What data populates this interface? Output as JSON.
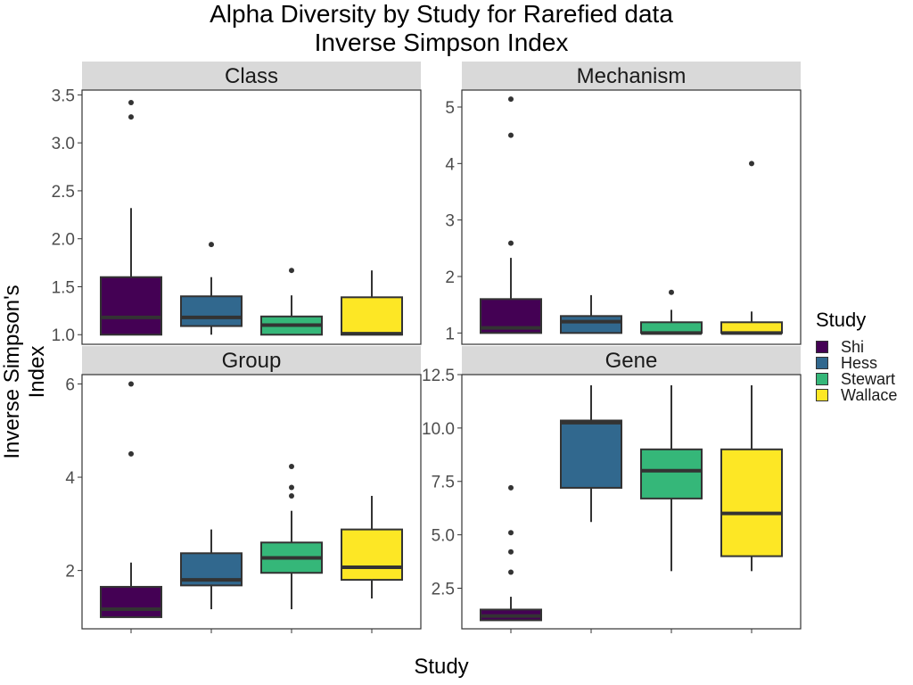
{
  "chart_data": {
    "type": "boxplot",
    "title": "Alpha Diversity by Study for Rarefied data",
    "subtitle": "Inverse Simpson Index",
    "xlabel": "Study",
    "ylabel": "Inverse Simpson's Index",
    "legend": {
      "title": "Study",
      "placement": "right",
      "entries": [
        {
          "name": "Shi",
          "color": "#440154"
        },
        {
          "name": "Hess",
          "color": "#31688E"
        },
        {
          "name": "Stewart",
          "color": "#35B779"
        },
        {
          "name": "Wallace",
          "color": "#FDE725"
        }
      ]
    },
    "categories": [
      "Shi",
      "Hess",
      "Stewart",
      "Wallace"
    ],
    "grid": false,
    "panels": [
      {
        "name": "Class",
        "ylim": [
          0.9,
          3.55
        ],
        "yticks": [
          1.0,
          1.5,
          2.0,
          2.5,
          3.0,
          3.5
        ],
        "ytick_labels": [
          "1.0",
          "1.5",
          "2.0",
          "2.5",
          "3.0",
          "3.5"
        ],
        "boxes": [
          {
            "study": "Shi",
            "whisker_low": 1.0,
            "q1": 1.0,
            "median": 1.18,
            "q3": 1.6,
            "whisker_high": 2.32,
            "outliers": [
              3.27,
              3.42
            ]
          },
          {
            "study": "Hess",
            "whisker_low": 1.0,
            "q1": 1.09,
            "median": 1.18,
            "q3": 1.4,
            "whisker_high": 1.6,
            "outliers": [
              1.94
            ]
          },
          {
            "study": "Stewart",
            "whisker_low": 1.0,
            "q1": 1.0,
            "median": 1.1,
            "q3": 1.19,
            "whisker_high": 1.41,
            "outliers": [
              1.67
            ]
          },
          {
            "study": "Wallace",
            "whisker_low": 1.0,
            "q1": 1.0,
            "median": 1.01,
            "q3": 1.39,
            "whisker_high": 1.67,
            "outliers": []
          }
        ]
      },
      {
        "name": "Mechanism",
        "ylim": [
          0.8,
          5.3
        ],
        "yticks": [
          1,
          2,
          3,
          4,
          5
        ],
        "ytick_labels": [
          "1",
          "2",
          "3",
          "4",
          "5"
        ],
        "boxes": [
          {
            "study": "Shi",
            "whisker_low": 1.0,
            "q1": 1.0,
            "median": 1.09,
            "q3": 1.6,
            "whisker_high": 2.33,
            "outliers": [
              2.59,
              4.5,
              5.14
            ]
          },
          {
            "study": "Hess",
            "whisker_low": 1.0,
            "q1": 1.0,
            "median": 1.2,
            "q3": 1.3,
            "whisker_high": 1.67,
            "outliers": []
          },
          {
            "study": "Stewart",
            "whisker_low": 1.0,
            "q1": 1.0,
            "median": 1.0,
            "q3": 1.19,
            "whisker_high": 1.41,
            "outliers": [
              1.72
            ]
          },
          {
            "study": "Wallace",
            "whisker_low": 1.0,
            "q1": 1.0,
            "median": 1.0,
            "q3": 1.19,
            "whisker_high": 1.38,
            "outliers": [
              4.0
            ]
          }
        ]
      },
      {
        "name": "Group",
        "ylim": [
          0.75,
          6.2
        ],
        "yticks": [
          2,
          4,
          6
        ],
        "ytick_labels": [
          "2",
          "4",
          "6"
        ],
        "boxes": [
          {
            "study": "Shi",
            "whisker_low": 1.0,
            "q1": 1.0,
            "median": 1.17,
            "q3": 1.65,
            "whisker_high": 2.17,
            "outliers": [
              4.5,
              6.0
            ]
          },
          {
            "study": "Hess",
            "whisker_low": 1.17,
            "q1": 1.68,
            "median": 1.8,
            "q3": 2.37,
            "whisker_high": 2.88,
            "outliers": []
          },
          {
            "study": "Stewart",
            "whisker_low": 1.17,
            "q1": 1.95,
            "median": 2.27,
            "q3": 2.6,
            "whisker_high": 3.28,
            "outliers": [
              3.6,
              3.78,
              4.23
            ]
          },
          {
            "study": "Wallace",
            "whisker_low": 1.4,
            "q1": 1.8,
            "median": 2.07,
            "q3": 2.88,
            "whisker_high": 3.6,
            "outliers": []
          }
        ]
      },
      {
        "name": "Gene",
        "ylim": [
          0.6,
          12.5
        ],
        "yticks": [
          2.5,
          5.0,
          7.5,
          10.0,
          12.5
        ],
        "ytick_labels": [
          "2.5",
          "5.0",
          "7.5",
          "10.0",
          "12.5"
        ],
        "boxes": [
          {
            "study": "Shi",
            "whisker_low": 1.0,
            "q1": 1.0,
            "median": 1.2,
            "q3": 1.5,
            "whisker_high": 2.1,
            "outliers": [
              3.25,
              4.2,
              5.1,
              7.2
            ]
          },
          {
            "study": "Hess",
            "whisker_low": 5.6,
            "q1": 7.2,
            "median": 10.25,
            "q3": 10.35,
            "whisker_high": 12.0,
            "outliers": []
          },
          {
            "study": "Stewart",
            "whisker_low": 3.3,
            "q1": 6.7,
            "median": 8.0,
            "q3": 9.0,
            "whisker_high": 12.0,
            "outliers": []
          },
          {
            "study": "Wallace",
            "whisker_low": 3.3,
            "q1": 4.0,
            "median": 6.0,
            "q3": 9.0,
            "whisker_high": 12.0,
            "outliers": []
          }
        ]
      }
    ]
  }
}
